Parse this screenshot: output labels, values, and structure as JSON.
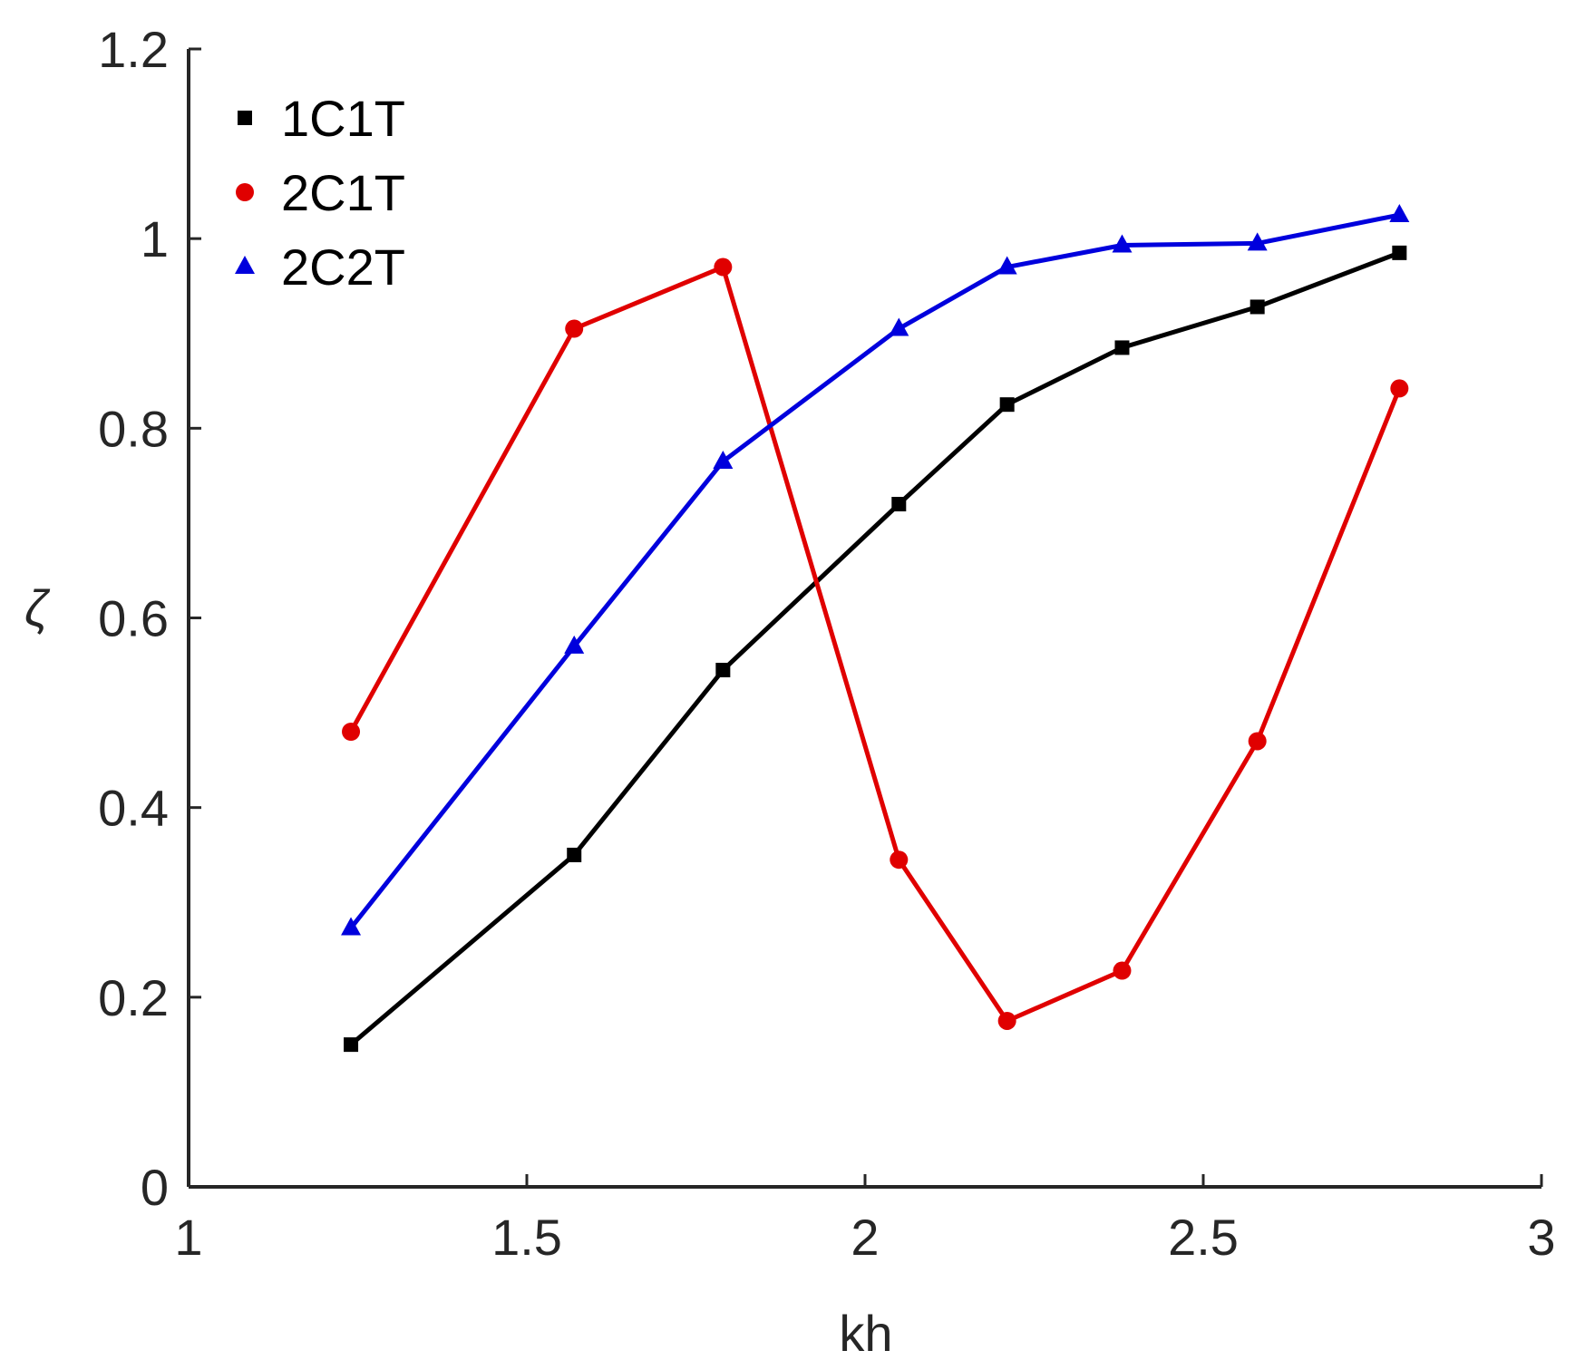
{
  "chart_data": {
    "type": "line",
    "title": "",
    "xlabel": "kh",
    "ylabel": "ζ",
    "xlim": [
      1,
      3
    ],
    "ylim": [
      0,
      1.2
    ],
    "xticks": [
      {
        "value": 1,
        "label": "1"
      },
      {
        "value": 1.5,
        "label": "1.5"
      },
      {
        "value": 2,
        "label": "2"
      },
      {
        "value": 2.5,
        "label": "2.5"
      },
      {
        "value": 3,
        "label": "3"
      }
    ],
    "yticks": [
      {
        "value": 0,
        "label": "0"
      },
      {
        "value": 0.2,
        "label": "0.2"
      },
      {
        "value": 0.4,
        "label": "0.4"
      },
      {
        "value": 0.6,
        "label": "0.6"
      },
      {
        "value": 0.8,
        "label": "0.8"
      },
      {
        "value": 1,
        "label": "1"
      },
      {
        "value": 1.2,
        "label": "1.2"
      }
    ],
    "grid": false,
    "legend_position": "top-left",
    "x": [
      1.24,
      1.57,
      1.79,
      2.05,
      2.21,
      2.38,
      2.58,
      2.79
    ],
    "series": [
      {
        "name": "1C1T",
        "color": "#000000",
        "marker": "square",
        "values": [
          0.15,
          0.35,
          0.545,
          0.72,
          0.825,
          0.885,
          0.928,
          0.985
        ]
      },
      {
        "name": "2C1T",
        "color": "#e00000",
        "marker": "circle",
        "values": [
          0.48,
          0.905,
          0.97,
          0.345,
          0.175,
          0.228,
          0.47,
          0.842
        ]
      },
      {
        "name": "2C2T",
        "color": "#0000dd",
        "marker": "triangle",
        "values": [
          0.273,
          0.57,
          0.765,
          0.905,
          0.97,
          0.993,
          0.995,
          1.025
        ]
      }
    ]
  }
}
